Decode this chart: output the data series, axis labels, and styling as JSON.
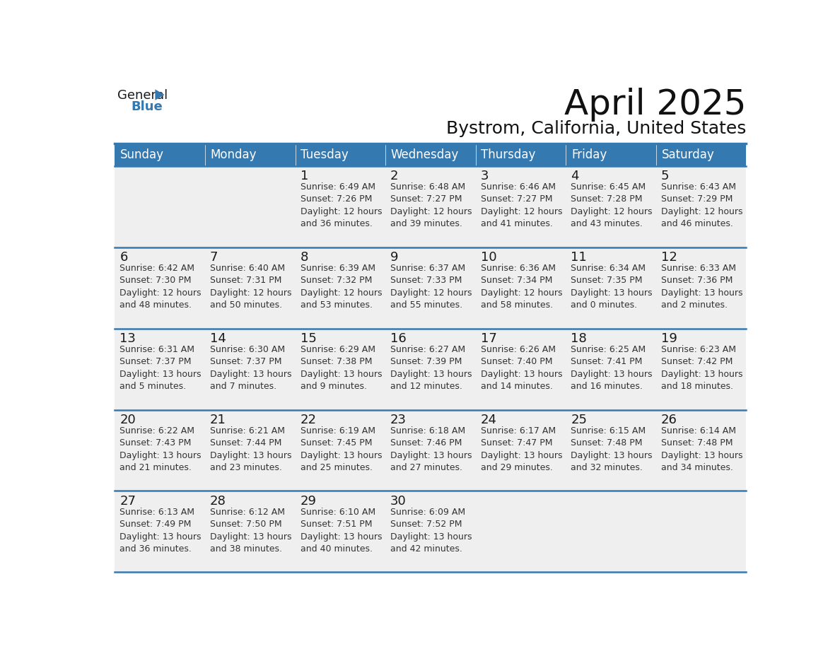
{
  "title": "April 2025",
  "subtitle": "Bystrom, California, United States",
  "header_bg": "#3579B1",
  "header_text_color": "#FFFFFF",
  "cell_bg": "#EFEFEF",
  "day_number_color": "#1a1a1a",
  "cell_text_color": "#333333",
  "row_divider_color": "#3579B1",
  "days_of_week": [
    "Sunday",
    "Monday",
    "Tuesday",
    "Wednesday",
    "Thursday",
    "Friday",
    "Saturday"
  ],
  "weeks": [
    [
      {
        "day": "",
        "info": ""
      },
      {
        "day": "",
        "info": ""
      },
      {
        "day": "1",
        "info": "Sunrise: 6:49 AM\nSunset: 7:26 PM\nDaylight: 12 hours\nand 36 minutes."
      },
      {
        "day": "2",
        "info": "Sunrise: 6:48 AM\nSunset: 7:27 PM\nDaylight: 12 hours\nand 39 minutes."
      },
      {
        "day": "3",
        "info": "Sunrise: 6:46 AM\nSunset: 7:27 PM\nDaylight: 12 hours\nand 41 minutes."
      },
      {
        "day": "4",
        "info": "Sunrise: 6:45 AM\nSunset: 7:28 PM\nDaylight: 12 hours\nand 43 minutes."
      },
      {
        "day": "5",
        "info": "Sunrise: 6:43 AM\nSunset: 7:29 PM\nDaylight: 12 hours\nand 46 minutes."
      }
    ],
    [
      {
        "day": "6",
        "info": "Sunrise: 6:42 AM\nSunset: 7:30 PM\nDaylight: 12 hours\nand 48 minutes."
      },
      {
        "day": "7",
        "info": "Sunrise: 6:40 AM\nSunset: 7:31 PM\nDaylight: 12 hours\nand 50 minutes."
      },
      {
        "day": "8",
        "info": "Sunrise: 6:39 AM\nSunset: 7:32 PM\nDaylight: 12 hours\nand 53 minutes."
      },
      {
        "day": "9",
        "info": "Sunrise: 6:37 AM\nSunset: 7:33 PM\nDaylight: 12 hours\nand 55 minutes."
      },
      {
        "day": "10",
        "info": "Sunrise: 6:36 AM\nSunset: 7:34 PM\nDaylight: 12 hours\nand 58 minutes."
      },
      {
        "day": "11",
        "info": "Sunrise: 6:34 AM\nSunset: 7:35 PM\nDaylight: 13 hours\nand 0 minutes."
      },
      {
        "day": "12",
        "info": "Sunrise: 6:33 AM\nSunset: 7:36 PM\nDaylight: 13 hours\nand 2 minutes."
      }
    ],
    [
      {
        "day": "13",
        "info": "Sunrise: 6:31 AM\nSunset: 7:37 PM\nDaylight: 13 hours\nand 5 minutes."
      },
      {
        "day": "14",
        "info": "Sunrise: 6:30 AM\nSunset: 7:37 PM\nDaylight: 13 hours\nand 7 minutes."
      },
      {
        "day": "15",
        "info": "Sunrise: 6:29 AM\nSunset: 7:38 PM\nDaylight: 13 hours\nand 9 minutes."
      },
      {
        "day": "16",
        "info": "Sunrise: 6:27 AM\nSunset: 7:39 PM\nDaylight: 13 hours\nand 12 minutes."
      },
      {
        "day": "17",
        "info": "Sunrise: 6:26 AM\nSunset: 7:40 PM\nDaylight: 13 hours\nand 14 minutes."
      },
      {
        "day": "18",
        "info": "Sunrise: 6:25 AM\nSunset: 7:41 PM\nDaylight: 13 hours\nand 16 minutes."
      },
      {
        "day": "19",
        "info": "Sunrise: 6:23 AM\nSunset: 7:42 PM\nDaylight: 13 hours\nand 18 minutes."
      }
    ],
    [
      {
        "day": "20",
        "info": "Sunrise: 6:22 AM\nSunset: 7:43 PM\nDaylight: 13 hours\nand 21 minutes."
      },
      {
        "day": "21",
        "info": "Sunrise: 6:21 AM\nSunset: 7:44 PM\nDaylight: 13 hours\nand 23 minutes."
      },
      {
        "day": "22",
        "info": "Sunrise: 6:19 AM\nSunset: 7:45 PM\nDaylight: 13 hours\nand 25 minutes."
      },
      {
        "day": "23",
        "info": "Sunrise: 6:18 AM\nSunset: 7:46 PM\nDaylight: 13 hours\nand 27 minutes."
      },
      {
        "day": "24",
        "info": "Sunrise: 6:17 AM\nSunset: 7:47 PM\nDaylight: 13 hours\nand 29 minutes."
      },
      {
        "day": "25",
        "info": "Sunrise: 6:15 AM\nSunset: 7:48 PM\nDaylight: 13 hours\nand 32 minutes."
      },
      {
        "day": "26",
        "info": "Sunrise: 6:14 AM\nSunset: 7:48 PM\nDaylight: 13 hours\nand 34 minutes."
      }
    ],
    [
      {
        "day": "27",
        "info": "Sunrise: 6:13 AM\nSunset: 7:49 PM\nDaylight: 13 hours\nand 36 minutes."
      },
      {
        "day": "28",
        "info": "Sunrise: 6:12 AM\nSunset: 7:50 PM\nDaylight: 13 hours\nand 38 minutes."
      },
      {
        "day": "29",
        "info": "Sunrise: 6:10 AM\nSunset: 7:51 PM\nDaylight: 13 hours\nand 40 minutes."
      },
      {
        "day": "30",
        "info": "Sunrise: 6:09 AM\nSunset: 7:52 PM\nDaylight: 13 hours\nand 42 minutes."
      },
      {
        "day": "",
        "info": ""
      },
      {
        "day": "",
        "info": ""
      },
      {
        "day": "",
        "info": ""
      }
    ]
  ],
  "logo_color_general": "#1a1a1a",
  "logo_color_blue": "#3579B1",
  "logo_triangle_color": "#3579B1",
  "title_fontsize": 36,
  "subtitle_fontsize": 18,
  "header_fontsize": 12,
  "day_num_fontsize": 13,
  "cell_text_fontsize": 9
}
